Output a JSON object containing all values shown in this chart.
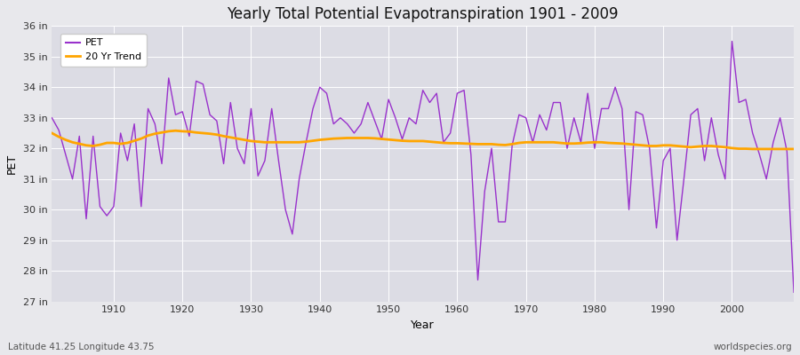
{
  "title": "Yearly Total Potential Evapotranspiration 1901 - 2009",
  "xlabel": "Year",
  "ylabel": "PET",
  "subtitle_left": "Latitude 41.25 Longitude 43.75",
  "subtitle_right": "worldspecies.org",
  "pet_color": "#9932CC",
  "trend_color": "#FFA500",
  "bg_color": "#E8E8EC",
  "plot_bg_color": "#DCDCE4",
  "ylim": [
    27,
    36
  ],
  "yticks": [
    27,
    28,
    29,
    30,
    31,
    32,
    33,
    34,
    35,
    36
  ],
  "ytick_labels": [
    "27 in",
    "28 in",
    "29 in",
    "30 in",
    "31 in",
    "32 in",
    "33 in",
    "34 in",
    "35 in",
    "36 in"
  ],
  "xlim": [
    1901,
    2009
  ],
  "xticks": [
    1910,
    1920,
    1930,
    1940,
    1950,
    1960,
    1970,
    1980,
    1990,
    2000
  ],
  "years": [
    1901,
    1902,
    1903,
    1904,
    1905,
    1906,
    1907,
    1908,
    1909,
    1910,
    1911,
    1912,
    1913,
    1914,
    1915,
    1916,
    1917,
    1918,
    1919,
    1920,
    1921,
    1922,
    1923,
    1924,
    1925,
    1926,
    1927,
    1928,
    1929,
    1930,
    1931,
    1932,
    1933,
    1934,
    1935,
    1936,
    1937,
    1938,
    1939,
    1940,
    1941,
    1942,
    1943,
    1944,
    1945,
    1946,
    1947,
    1948,
    1949,
    1950,
    1951,
    1952,
    1953,
    1954,
    1955,
    1956,
    1957,
    1958,
    1959,
    1960,
    1961,
    1962,
    1963,
    1964,
    1965,
    1966,
    1967,
    1968,
    1969,
    1970,
    1971,
    1972,
    1973,
    1974,
    1975,
    1976,
    1977,
    1978,
    1979,
    1980,
    1981,
    1982,
    1983,
    1984,
    1985,
    1986,
    1987,
    1988,
    1989,
    1990,
    1991,
    1992,
    1993,
    1994,
    1995,
    1996,
    1997,
    1998,
    1999,
    2000,
    2001,
    2002,
    2003,
    2004,
    2005,
    2006,
    2007,
    2008,
    2009
  ],
  "pet_values": [
    33.0,
    32.6,
    31.8,
    31.0,
    32.4,
    29.7,
    32.4,
    30.1,
    29.8,
    30.1,
    32.5,
    31.6,
    32.8,
    30.1,
    33.3,
    32.8,
    31.5,
    34.3,
    33.1,
    33.2,
    32.4,
    34.2,
    34.1,
    33.1,
    32.9,
    31.5,
    33.5,
    32.0,
    31.5,
    33.3,
    31.1,
    31.6,
    33.3,
    31.6,
    30.0,
    29.2,
    31.0,
    32.2,
    33.3,
    34.0,
    33.8,
    32.8,
    33.0,
    32.8,
    32.5,
    32.8,
    33.5,
    32.9,
    32.3,
    33.6,
    33.0,
    32.3,
    33.0,
    32.8,
    33.9,
    33.5,
    33.8,
    32.2,
    32.5,
    33.8,
    33.9,
    31.8,
    27.7,
    30.6,
    32.0,
    29.6,
    29.6,
    32.1,
    33.1,
    33.0,
    32.2,
    33.1,
    32.6,
    33.5,
    33.5,
    32.0,
    33.0,
    32.2,
    33.8,
    32.0,
    33.3,
    33.3,
    34.0,
    33.3,
    30.0,
    33.2,
    33.1,
    32.0,
    29.4,
    31.6,
    32.0,
    29.0,
    31.0,
    33.1,
    33.3,
    31.6,
    33.0,
    31.8,
    31.0,
    35.5,
    33.5,
    33.6,
    32.5,
    31.8,
    31.0,
    32.2,
    33.0,
    31.9,
    27.3
  ],
  "trend_values": [
    32.5,
    32.38,
    32.28,
    32.2,
    32.15,
    32.1,
    32.08,
    32.12,
    32.18,
    32.18,
    32.15,
    32.18,
    32.25,
    32.32,
    32.42,
    32.48,
    32.52,
    32.56,
    32.58,
    32.56,
    32.55,
    32.52,
    32.5,
    32.48,
    32.45,
    32.4,
    32.36,
    32.32,
    32.28,
    32.24,
    32.22,
    32.2,
    32.2,
    32.2,
    32.2,
    32.2,
    32.2,
    32.22,
    32.25,
    32.28,
    32.3,
    32.32,
    32.33,
    32.34,
    32.34,
    32.34,
    32.34,
    32.33,
    32.31,
    32.29,
    32.27,
    32.25,
    32.24,
    32.24,
    32.24,
    32.22,
    32.2,
    32.18,
    32.17,
    32.17,
    32.16,
    32.15,
    32.14,
    32.14,
    32.14,
    32.12,
    32.11,
    32.14,
    32.18,
    32.2,
    32.2,
    32.2,
    32.2,
    32.2,
    32.18,
    32.16,
    32.16,
    32.17,
    32.19,
    32.2,
    32.2,
    32.18,
    32.17,
    32.16,
    32.14,
    32.12,
    32.1,
    32.08,
    32.08,
    32.1,
    32.1,
    32.08,
    32.06,
    32.04,
    32.06,
    32.08,
    32.08,
    32.06,
    32.04,
    32.01,
    31.99,
    31.99,
    31.98,
    31.98,
    31.98,
    31.98,
    31.98,
    31.98,
    31.98
  ]
}
